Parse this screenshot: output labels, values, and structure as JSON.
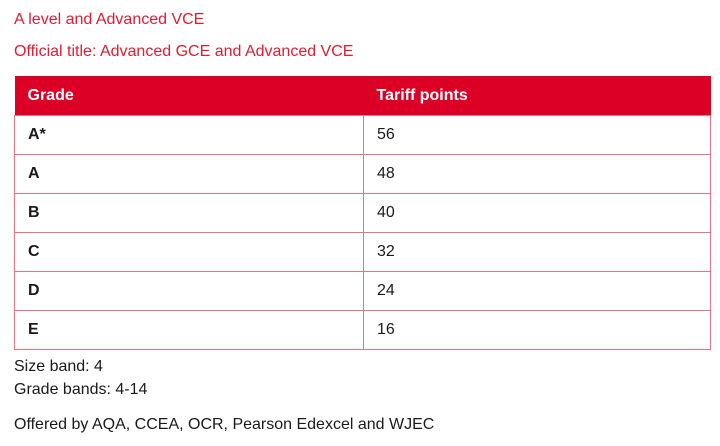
{
  "page": {
    "title": "A level and Advanced VCE",
    "official_title": "Official title: Advanced GCE and Advanced VCE"
  },
  "table": {
    "headers": [
      "Grade",
      "Tariff points"
    ],
    "rows": [
      {
        "grade": "A*",
        "points": "56"
      },
      {
        "grade": "A",
        "points": "48"
      },
      {
        "grade": "B",
        "points": "40"
      },
      {
        "grade": "C",
        "points": "32"
      },
      {
        "grade": "D",
        "points": "24"
      },
      {
        "grade": "E",
        "points": "16"
      }
    ]
  },
  "footer": {
    "size_band": "Size band: 4",
    "grade_bands": "Grade bands: 4-14",
    "offered_by": "Offered by AQA, CCEA, OCR, Pearson Edexcel and WJEC"
  },
  "colors": {
    "header_red": "#dc0026",
    "title_red": "#e21b31",
    "border_pink": "#e97184",
    "body_text": "#1a1a1a"
  }
}
